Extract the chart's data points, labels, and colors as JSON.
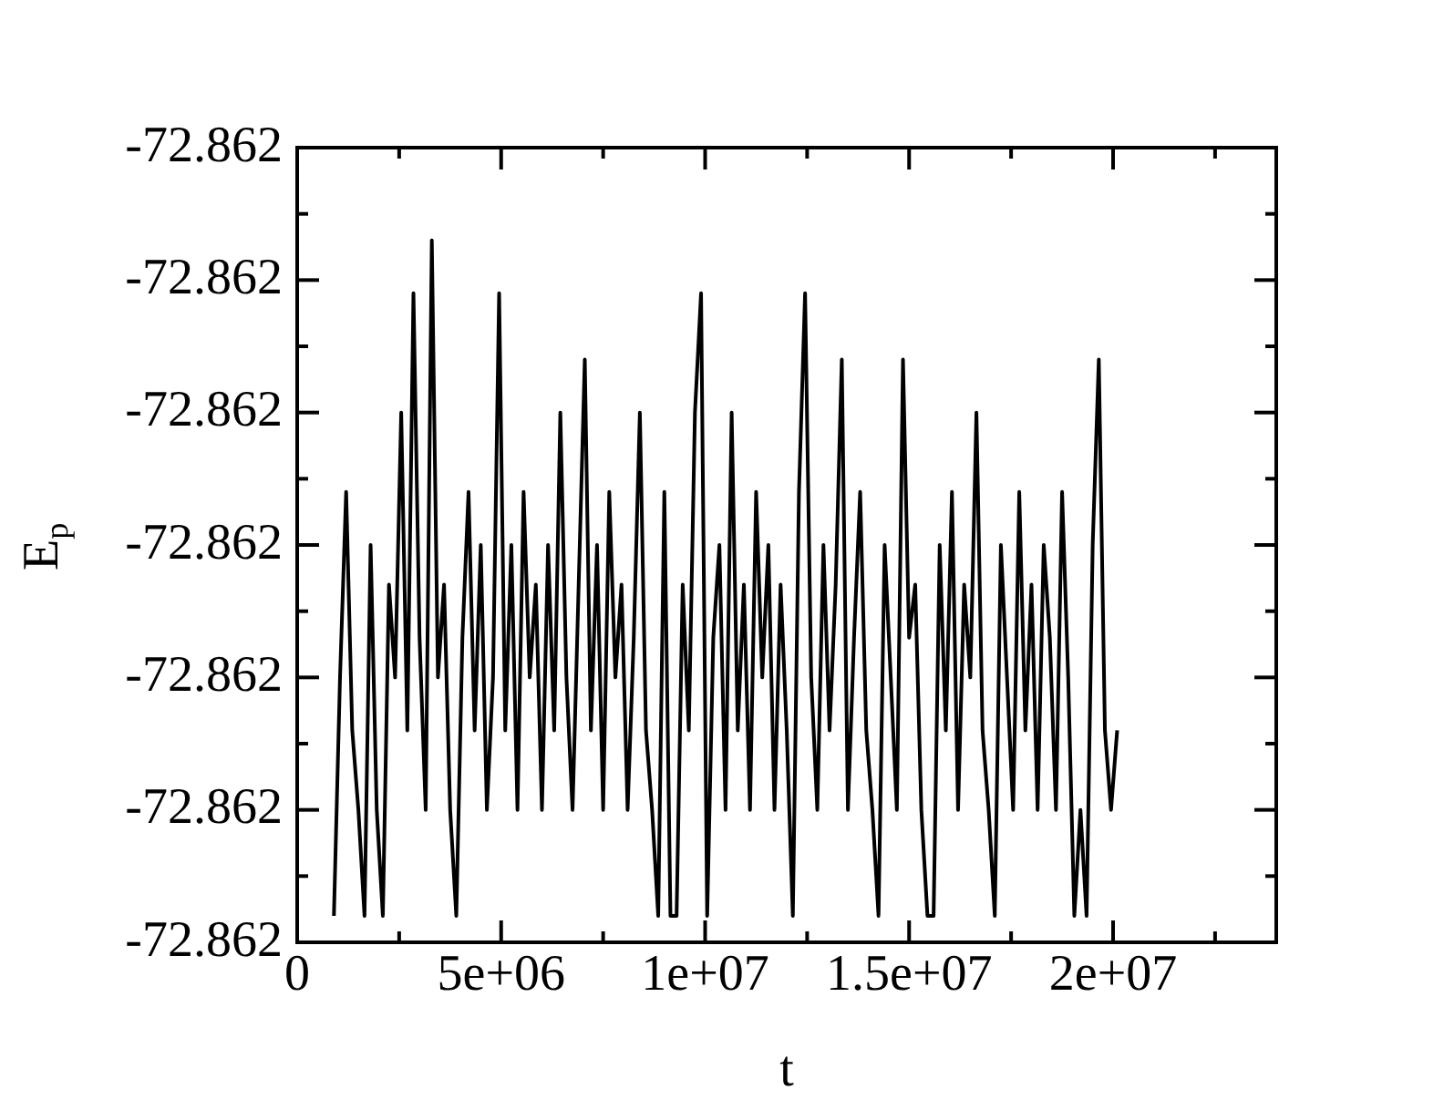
{
  "chart_data": {
    "type": "line",
    "xlabel": "t",
    "ylabel": "E$_{p}$",
    "xlim": [
      0,
      24000000
    ],
    "xticks": [
      {
        "value": 0,
        "label": "0"
      },
      {
        "value": 5000000,
        "label": "5e+06"
      },
      {
        "value": 10000000,
        "label": "1e+07"
      },
      {
        "value": 15000000,
        "label": "1.5e+07"
      },
      {
        "value": 20000000,
        "label": "2e+07"
      }
    ],
    "ylim": [
      -72.86203,
      -72.86197
    ],
    "yticks": [
      {
        "value": -72.86203,
        "label": "-72.862"
      },
      {
        "value": -72.86202,
        "label": "-72.862"
      },
      {
        "value": -72.86201,
        "label": "-72.862"
      },
      {
        "value": -72.862,
        "label": "-72.862"
      },
      {
        "value": -72.86199,
        "label": "-72.862"
      },
      {
        "value": -72.86198,
        "label": "-72.862"
      },
      {
        "value": -72.86197,
        "label": "-72.862"
      }
    ],
    "grid": false,
    "legend": false,
    "marker": "none",
    "line_style": "solid",
    "series": [
      {
        "color": "#000000",
        "x": [
          900000,
          1050000,
          1200000,
          1350000,
          1500000,
          1650000,
          1800000,
          1950000,
          2100000,
          2250000,
          2400000,
          2550000,
          2700000,
          2850000,
          3000000,
          3150000,
          3300000,
          3450000,
          3600000,
          3750000,
          3900000,
          4050000,
          4200000,
          4350000,
          4500000,
          4650000,
          4800000,
          4950000,
          5100000,
          5250000,
          5400000,
          5550000,
          5700000,
          5850000,
          6000000,
          6150000,
          6300000,
          6450000,
          6600000,
          6750000,
          6900000,
          7050000,
          7200000,
          7350000,
          7500000,
          7650000,
          7800000,
          7950000,
          8100000,
          8250000,
          8400000,
          8550000,
          8700000,
          8850000,
          9000000,
          9150000,
          9300000,
          9450000,
          9600000,
          9750000,
          9900000,
          10050000,
          10200000,
          10350000,
          10500000,
          10650000,
          10800000,
          10950000,
          11100000,
          11250000,
          11400000,
          11550000,
          11700000,
          11850000,
          12000000,
          12150000,
          12300000,
          12450000,
          12600000,
          12750000,
          12900000,
          13050000,
          13200000,
          13350000,
          13500000,
          13650000,
          13800000,
          13950000,
          14100000,
          14250000,
          14400000,
          14550000,
          14700000,
          14850000,
          15000000,
          15150000,
          15300000,
          15450000,
          15600000,
          15750000,
          15900000,
          16050000,
          16200000,
          16350000,
          16500000,
          16650000,
          16800000,
          16950000,
          17100000,
          17250000,
          17400000,
          17550000,
          17700000,
          17850000,
          18000000,
          18150000,
          18300000,
          18450000,
          18600000,
          18750000,
          18900000,
          19050000,
          19200000,
          19350000,
          19500000,
          19650000,
          19800000,
          19950000,
          20100000
        ],
        "values": [
          -72.862028,
          -72.86201,
          -72.861996,
          -72.862014,
          -72.86202,
          -72.862028,
          -72.862,
          -72.86202,
          -72.862028,
          -72.862003,
          -72.86201,
          -72.86199,
          -72.862014,
          -72.861981,
          -72.862007,
          -72.86202,
          -72.861977,
          -72.86201,
          -72.862003,
          -72.86202,
          -72.862028,
          -72.862007,
          -72.861996,
          -72.862014,
          -72.862,
          -72.86202,
          -72.86201,
          -72.861981,
          -72.862014,
          -72.862,
          -72.86202,
          -72.861996,
          -72.86201,
          -72.862003,
          -72.86202,
          -72.862,
          -72.862014,
          -72.86199,
          -72.86201,
          -72.86202,
          -72.862003,
          -72.861986,
          -72.862014,
          -72.862,
          -72.86202,
          -72.861996,
          -72.86201,
          -72.862003,
          -72.86202,
          -72.862007,
          -72.86199,
          -72.862014,
          -72.86202,
          -72.862028,
          -72.861996,
          -72.862028,
          -72.862028,
          -72.862003,
          -72.862014,
          -72.86199,
          -72.861981,
          -72.862028,
          -72.862007,
          -72.862,
          -72.86202,
          -72.86199,
          -72.862014,
          -72.862003,
          -72.86202,
          -72.861996,
          -72.86201,
          -72.862,
          -72.86202,
          -72.862003,
          -72.862014,
          -72.862028,
          -72.861996,
          -72.861981,
          -72.86201,
          -72.86202,
          -72.862,
          -72.862014,
          -72.862003,
          -72.861986,
          -72.86202,
          -72.862007,
          -72.861996,
          -72.862014,
          -72.86202,
          -72.862028,
          -72.862,
          -72.86201,
          -72.86202,
          -72.861986,
          -72.862007,
          -72.862003,
          -72.86202,
          -72.862028,
          -72.862028,
          -72.862,
          -72.862014,
          -72.861996,
          -72.86202,
          -72.862003,
          -72.86201,
          -72.86199,
          -72.862014,
          -72.86202,
          -72.862028,
          -72.862,
          -72.86201,
          -72.86202,
          -72.861996,
          -72.862014,
          -72.862003,
          -72.86202,
          -72.862,
          -72.862007,
          -72.86202,
          -72.861996,
          -72.86201,
          -72.862028,
          -72.86202,
          -72.862028,
          -72.862,
          -72.861986,
          -72.862014,
          -72.86202,
          -72.862014
        ]
      }
    ]
  }
}
